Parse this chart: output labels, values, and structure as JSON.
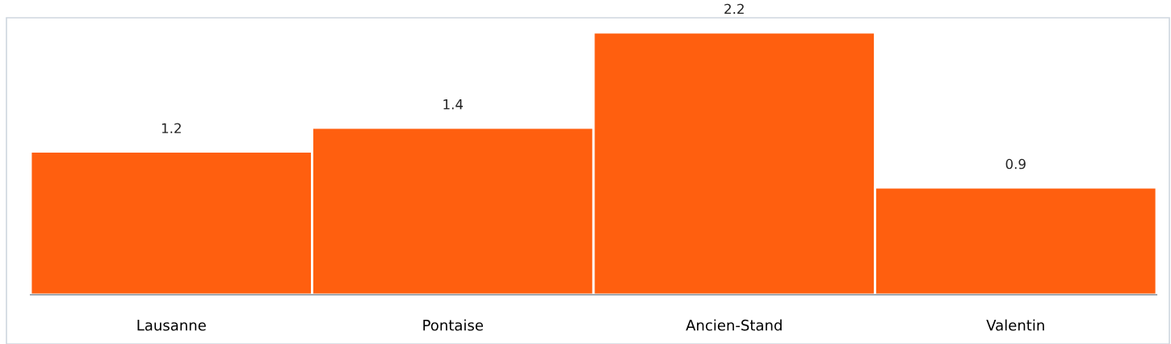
{
  "chart_data": {
    "type": "bar",
    "categories": [
      "Lausanne",
      "Pontaise",
      "Ancien-Stand",
      "Valentin"
    ],
    "values": [
      1.2,
      1.4,
      2.2,
      0.9
    ],
    "color": "#ff5f0f",
    "data_labels": true,
    "grid": false,
    "legend": false
  }
}
